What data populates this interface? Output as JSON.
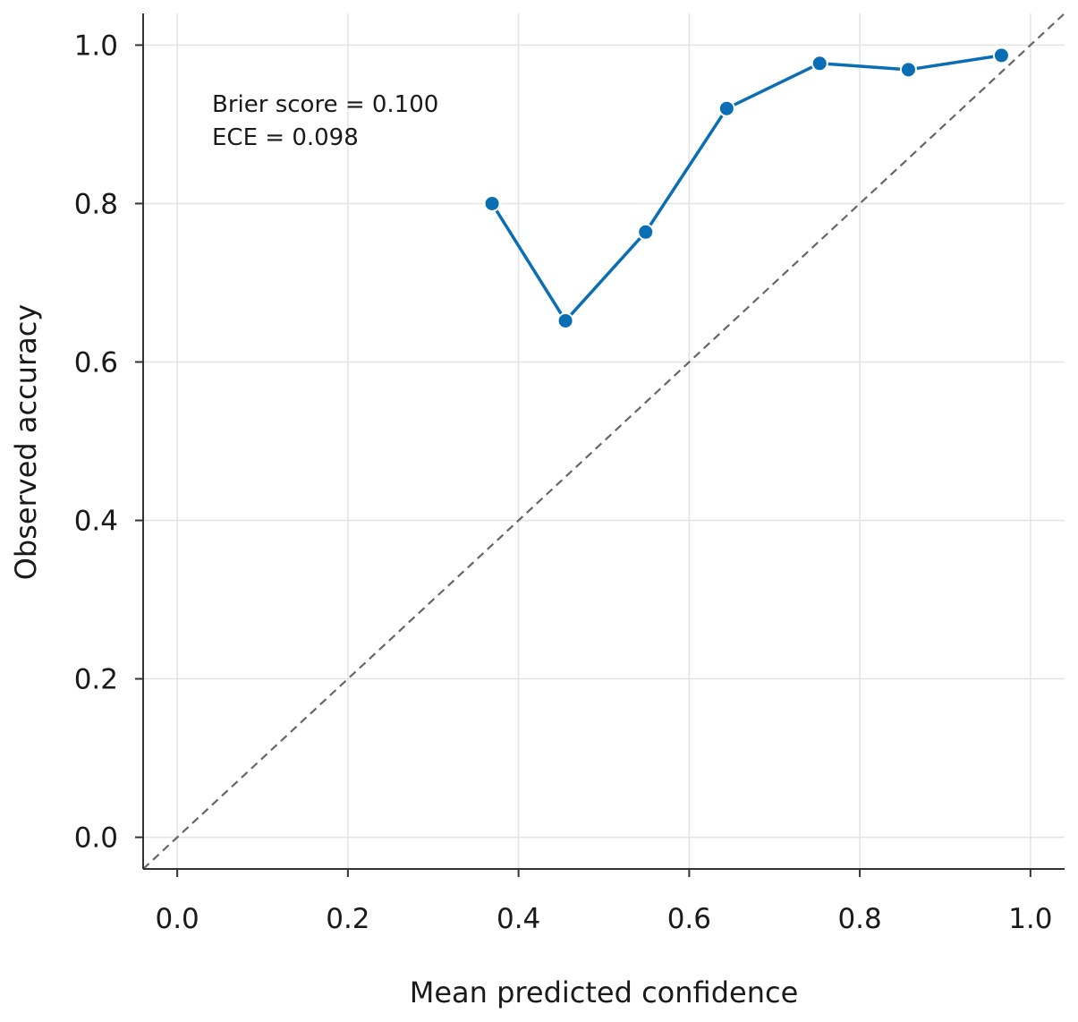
{
  "chart_data": {
    "type": "line",
    "xlabel": "Mean predicted confidence",
    "ylabel": "Observed accuracy",
    "xlim": [
      -0.04,
      1.04
    ],
    "ylim": [
      -0.04,
      1.04
    ],
    "xticks": [
      "0.0",
      "0.2",
      "0.4",
      "0.6",
      "0.8",
      "1.0"
    ],
    "yticks": [
      "0.0",
      "0.2",
      "0.4",
      "0.6",
      "0.8",
      "1.0"
    ],
    "grid": true,
    "annotations": [
      "Brier score = 0.100",
      "ECE = 0.098"
    ],
    "reference_line": {
      "style": "dashed",
      "x": [
        -0.04,
        1.04
      ],
      "y": [
        -0.04,
        1.04
      ]
    },
    "series": [
      {
        "x": [
          0.369,
          0.455,
          0.549,
          0.644,
          0.753,
          0.857,
          0.966
        ],
        "y": [
          0.8,
          0.652,
          0.764,
          0.92,
          0.977,
          0.969,
          0.987
        ]
      }
    ],
    "colors": {
      "series": "#0a6eb4",
      "reference": "#666666",
      "grid": "#e3e3e3",
      "axis": "#333333"
    }
  }
}
